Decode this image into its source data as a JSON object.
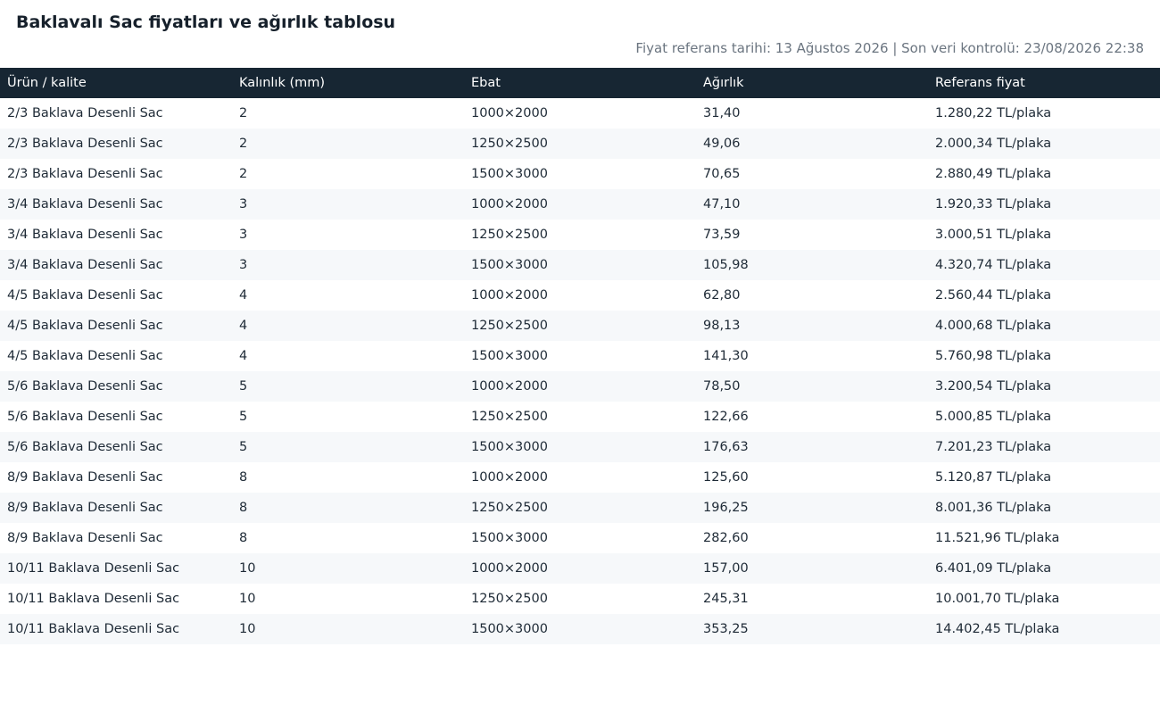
{
  "header": {
    "title": "Baklavalı Sac fiyatları ve ağırlık tablosu",
    "meta": "Fiyat referans tarihi: 13 Ağustos 2026 | Son veri kontrolü: 23/08/2026 22:38"
  },
  "table": {
    "columns": [
      "Ürün / kalite",
      "Kalınlık (mm)",
      "Ebat",
      "Ağırlık",
      "Referans fiyat"
    ],
    "rows": [
      [
        "2/3 Baklava Desenli Sac",
        "2",
        "1000×2000",
        "31,40",
        "1.280,22 TL/plaka"
      ],
      [
        "2/3 Baklava Desenli Sac",
        "2",
        "1250×2500",
        "49,06",
        "2.000,34 TL/plaka"
      ],
      [
        "2/3 Baklava Desenli Sac",
        "2",
        "1500×3000",
        "70,65",
        "2.880,49 TL/plaka"
      ],
      [
        "3/4 Baklava Desenli Sac",
        "3",
        "1000×2000",
        "47,10",
        "1.920,33 TL/plaka"
      ],
      [
        "3/4 Baklava Desenli Sac",
        "3",
        "1250×2500",
        "73,59",
        "3.000,51 TL/plaka"
      ],
      [
        "3/4 Baklava Desenli Sac",
        "3",
        "1500×3000",
        "105,98",
        "4.320,74 TL/plaka"
      ],
      [
        "4/5 Baklava Desenli Sac",
        "4",
        "1000×2000",
        "62,80",
        "2.560,44 TL/plaka"
      ],
      [
        "4/5 Baklava Desenli Sac",
        "4",
        "1250×2500",
        "98,13",
        "4.000,68 TL/plaka"
      ],
      [
        "4/5 Baklava Desenli Sac",
        "4",
        "1500×3000",
        "141,30",
        "5.760,98 TL/plaka"
      ],
      [
        "5/6 Baklava Desenli Sac",
        "5",
        "1000×2000",
        "78,50",
        "3.200,54 TL/plaka"
      ],
      [
        "5/6 Baklava Desenli Sac",
        "5",
        "1250×2500",
        "122,66",
        "5.000,85 TL/plaka"
      ],
      [
        "5/6 Baklava Desenli Sac",
        "5",
        "1500×3000",
        "176,63",
        "7.201,23 TL/plaka"
      ],
      [
        "8/9 Baklava Desenli Sac",
        "8",
        "1000×2000",
        "125,60",
        "5.120,87 TL/plaka"
      ],
      [
        "8/9 Baklava Desenli Sac",
        "8",
        "1250×2500",
        "196,25",
        "8.001,36 TL/plaka"
      ],
      [
        "8/9 Baklava Desenli Sac",
        "8",
        "1500×3000",
        "282,60",
        "11.521,96 TL/plaka"
      ],
      [
        "10/11 Baklava Desenli Sac",
        "10",
        "1000×2000",
        "157,00",
        "6.401,09 TL/plaka"
      ],
      [
        "10/11 Baklava Desenli Sac",
        "10",
        "1250×2500",
        "245,31",
        "10.001,70 TL/plaka"
      ],
      [
        "10/11 Baklava Desenli Sac",
        "10",
        "1500×3000",
        "353,25",
        "14.402,45 TL/plaka"
      ]
    ]
  }
}
